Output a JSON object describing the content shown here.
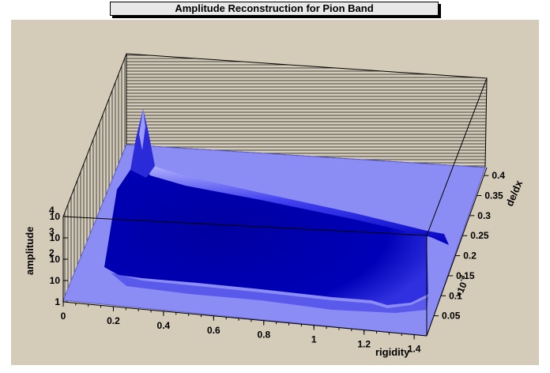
{
  "chart_data": {
    "type": "surface3d",
    "title": "Amplitude Reconstruction for Pion Band",
    "xlabel": "rigidity",
    "ylabel": "de/dx",
    "zlabel": "amplitude",
    "xlim": [
      0,
      1.45
    ],
    "ylim": [
      0,
      0.42
    ],
    "x_ticks": [
      "0",
      "0.2",
      "0.4",
      "0.6",
      "0.8",
      "1",
      "1.2",
      "1.4"
    ],
    "y_ticks": [
      "0.05",
      "0.1",
      "0.15",
      "0.2",
      "0.25",
      "0.3",
      "0.35",
      "0.4"
    ],
    "z_ticks": [
      "1",
      "10",
      "10",
      "10",
      "10"
    ],
    "z_tick_exponents": [
      "",
      "",
      "2",
      "3",
      "4"
    ],
    "y_multiplier": "×10",
    "y_multiplier_exp": "-3",
    "colors": {
      "surface_light": "#8c8cf5",
      "surface_dark": "#0000a0",
      "pad": "#d4cbb8",
      "frame_bg": "#ffffff"
    }
  }
}
